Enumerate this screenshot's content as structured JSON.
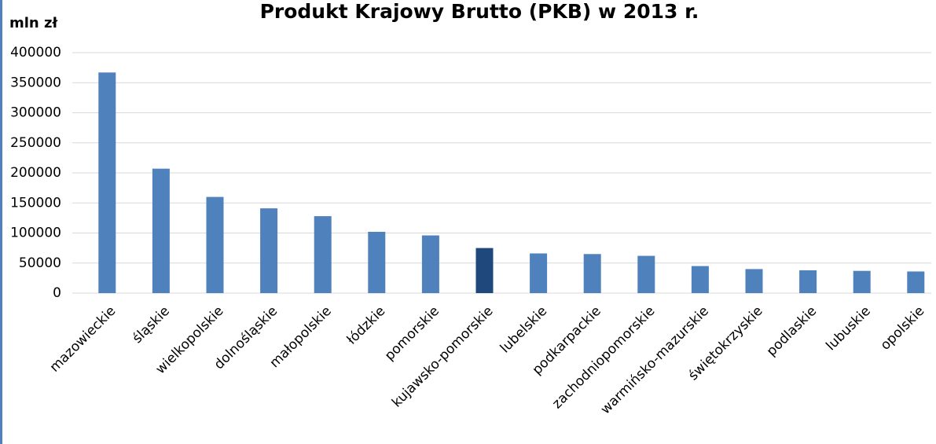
{
  "chart_data": {
    "type": "bar",
    "title": "Produkt Krajowy Brutto (PKB) w 2013 r.",
    "y_label": "mln zł",
    "categories": [
      "mazowieckie",
      "śląskie",
      "wielkopolskie",
      "dolnośląskie",
      "małopolskie",
      "łódzkie",
      "pomorskie",
      "kujawsko-pomorskie",
      "lubelskie",
      "podkarpackie",
      "zachodniopomorskie",
      "warmińsko-mazurskie",
      "świętokrzyskie",
      "podlaskie",
      "lubuskie",
      "opolskie"
    ],
    "values": [
      367000,
      207000,
      160000,
      141000,
      128000,
      102000,
      96000,
      75000,
      66000,
      65000,
      62000,
      45000,
      40000,
      38000,
      37000,
      36000
    ],
    "colors": [
      "#4f81bd",
      "#4f81bd",
      "#4f81bd",
      "#4f81bd",
      "#4f81bd",
      "#4f81bd",
      "#4f81bd",
      "#1f497d",
      "#4f81bd",
      "#4f81bd",
      "#4f81bd",
      "#4f81bd",
      "#4f81bd",
      "#4f81bd",
      "#4f81bd",
      "#4f81bd"
    ],
    "ylim": [
      0,
      400000
    ],
    "yticks": [
      0,
      50000,
      100000,
      150000,
      200000,
      250000,
      300000,
      350000,
      400000
    ],
    "grid": true
  }
}
